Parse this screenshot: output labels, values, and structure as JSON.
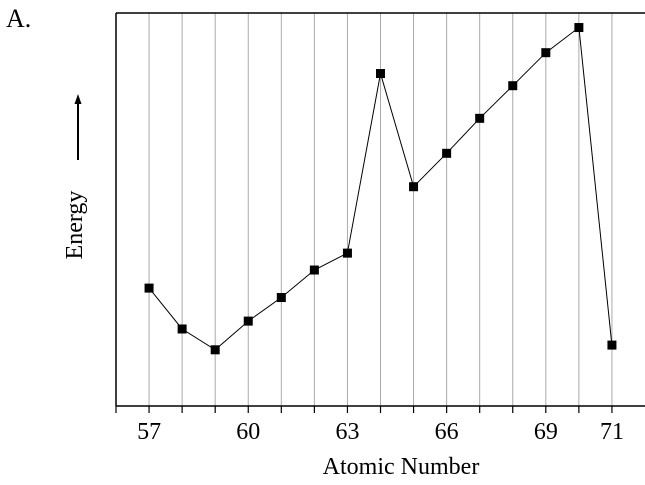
{
  "panel_label": "A.",
  "chart_data": {
    "type": "line",
    "title": "",
    "xlabel": "Atomic Number",
    "ylabel": "Energy",
    "ylabel_arrow": "up",
    "xlim": [
      56,
      72
    ],
    "ylim": [
      0,
      100
    ],
    "x_ticks": [
      57,
      60,
      63,
      66,
      69,
      71
    ],
    "x_tick_labels": [
      "57",
      "60",
      "63",
      "66",
      "69",
      "71"
    ],
    "grid": "vertical lines at each integer",
    "marker": "square",
    "line_color": "#000000",
    "grid_color": "#aaaaaa",
    "series": [
      {
        "x": [
          57,
          58,
          59,
          60,
          61,
          62,
          63,
          64,
          65,
          66,
          67,
          68,
          69,
          70,
          71
        ],
        "values": [
          30,
          19.6,
          14.3,
          21.6,
          27.6,
          34.6,
          38.9,
          84.6,
          55.8,
          64.3,
          73.2,
          81.5,
          89.9,
          96.3,
          15.5
        ]
      }
    ]
  }
}
